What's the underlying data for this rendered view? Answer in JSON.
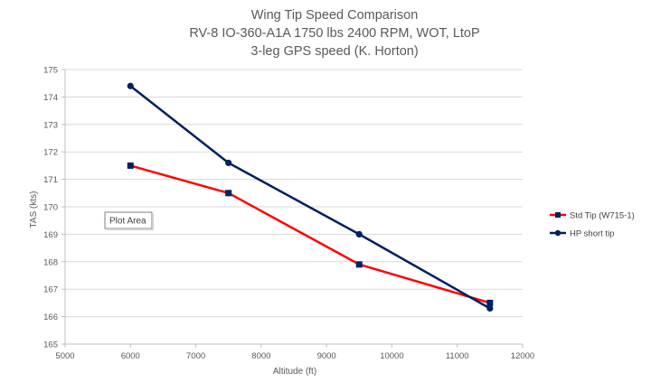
{
  "chart_data": {
    "type": "line",
    "title_lines": [
      "Wing Tip Speed Comparison",
      "RV-8 IO-360-A1A 1750 lbs 2400 RPM, WOT, LtoP",
      "3-leg GPS speed (K. Horton)"
    ],
    "xlabel": "Altitude (ft)",
    "ylabel": "TAS (kts)",
    "xlim": [
      5000,
      12000
    ],
    "ylim": [
      165,
      175
    ],
    "x_ticks": [
      5000,
      6000,
      7000,
      8000,
      9000,
      10000,
      11000,
      12000
    ],
    "y_ticks": [
      165,
      166,
      167,
      168,
      169,
      170,
      171,
      172,
      173,
      174,
      175
    ],
    "grid": "horizontal",
    "legend_position": "right",
    "series": [
      {
        "name": "Std Tip (W715-1)",
        "color": "#ff0000",
        "marker": "square",
        "x": [
          6000,
          7500,
          9500,
          11500
        ],
        "y": [
          171.5,
          170.5,
          167.9,
          166.5
        ]
      },
      {
        "name": "HP short tip",
        "color": "#002060",
        "marker": "circle",
        "x": [
          6000,
          7500,
          9500,
          11500
        ],
        "y": [
          174.4,
          171.6,
          169.0,
          166.3
        ]
      }
    ],
    "annotations": [
      {
        "text": "Plot Area"
      }
    ]
  }
}
